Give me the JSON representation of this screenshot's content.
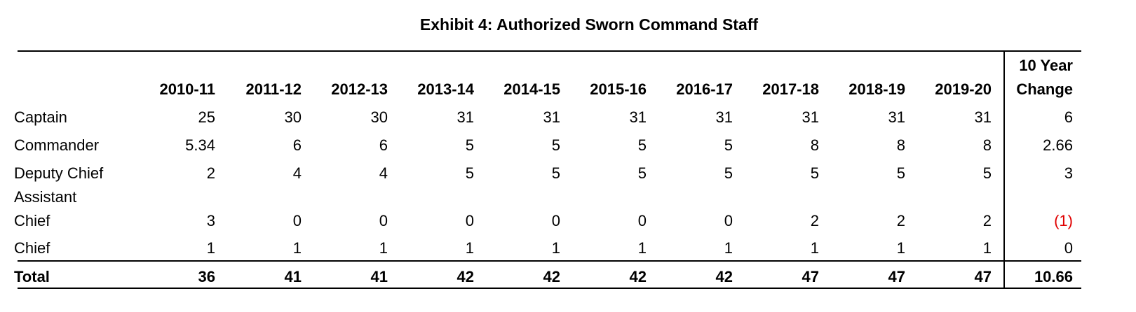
{
  "title": "Exhibit 4: Authorized Sworn Command Staff",
  "table": {
    "columns": [
      "2010-11",
      "2011-12",
      "2012-13",
      "2013-14",
      "2014-15",
      "2015-16",
      "2016-17",
      "2017-18",
      "2018-19",
      "2019-20",
      "10 Year Change"
    ],
    "rows": [
      {
        "label": "Captain",
        "cells": [
          "25",
          "30",
          "30",
          "31",
          "31",
          "31",
          "31",
          "31",
          "31",
          "31",
          "6"
        ]
      },
      {
        "label": "Commander",
        "cells": [
          "5.34",
          "6",
          "6",
          "5",
          "5",
          "5",
          "5",
          "8",
          "8",
          "8",
          "2.66"
        ]
      },
      {
        "label": "Deputy Chief",
        "cells": [
          "2",
          "4",
          "4",
          "5",
          "5",
          "5",
          "5",
          "5",
          "5",
          "5",
          "3"
        ]
      },
      {
        "label": "Assistant Chief",
        "cells": [
          "3",
          "0",
          "0",
          "0",
          "0",
          "0",
          "0",
          "2",
          "2",
          "2",
          "(1)"
        ]
      },
      {
        "label": "Chief",
        "cells": [
          "1",
          "1",
          "1",
          "1",
          "1",
          "1",
          "1",
          "1",
          "1",
          "1",
          "0"
        ]
      }
    ],
    "total": {
      "label": "Total",
      "cells": [
        "36",
        "41",
        "41",
        "42",
        "42",
        "42",
        "42",
        "47",
        "47",
        "47",
        "10.66"
      ]
    }
  }
}
